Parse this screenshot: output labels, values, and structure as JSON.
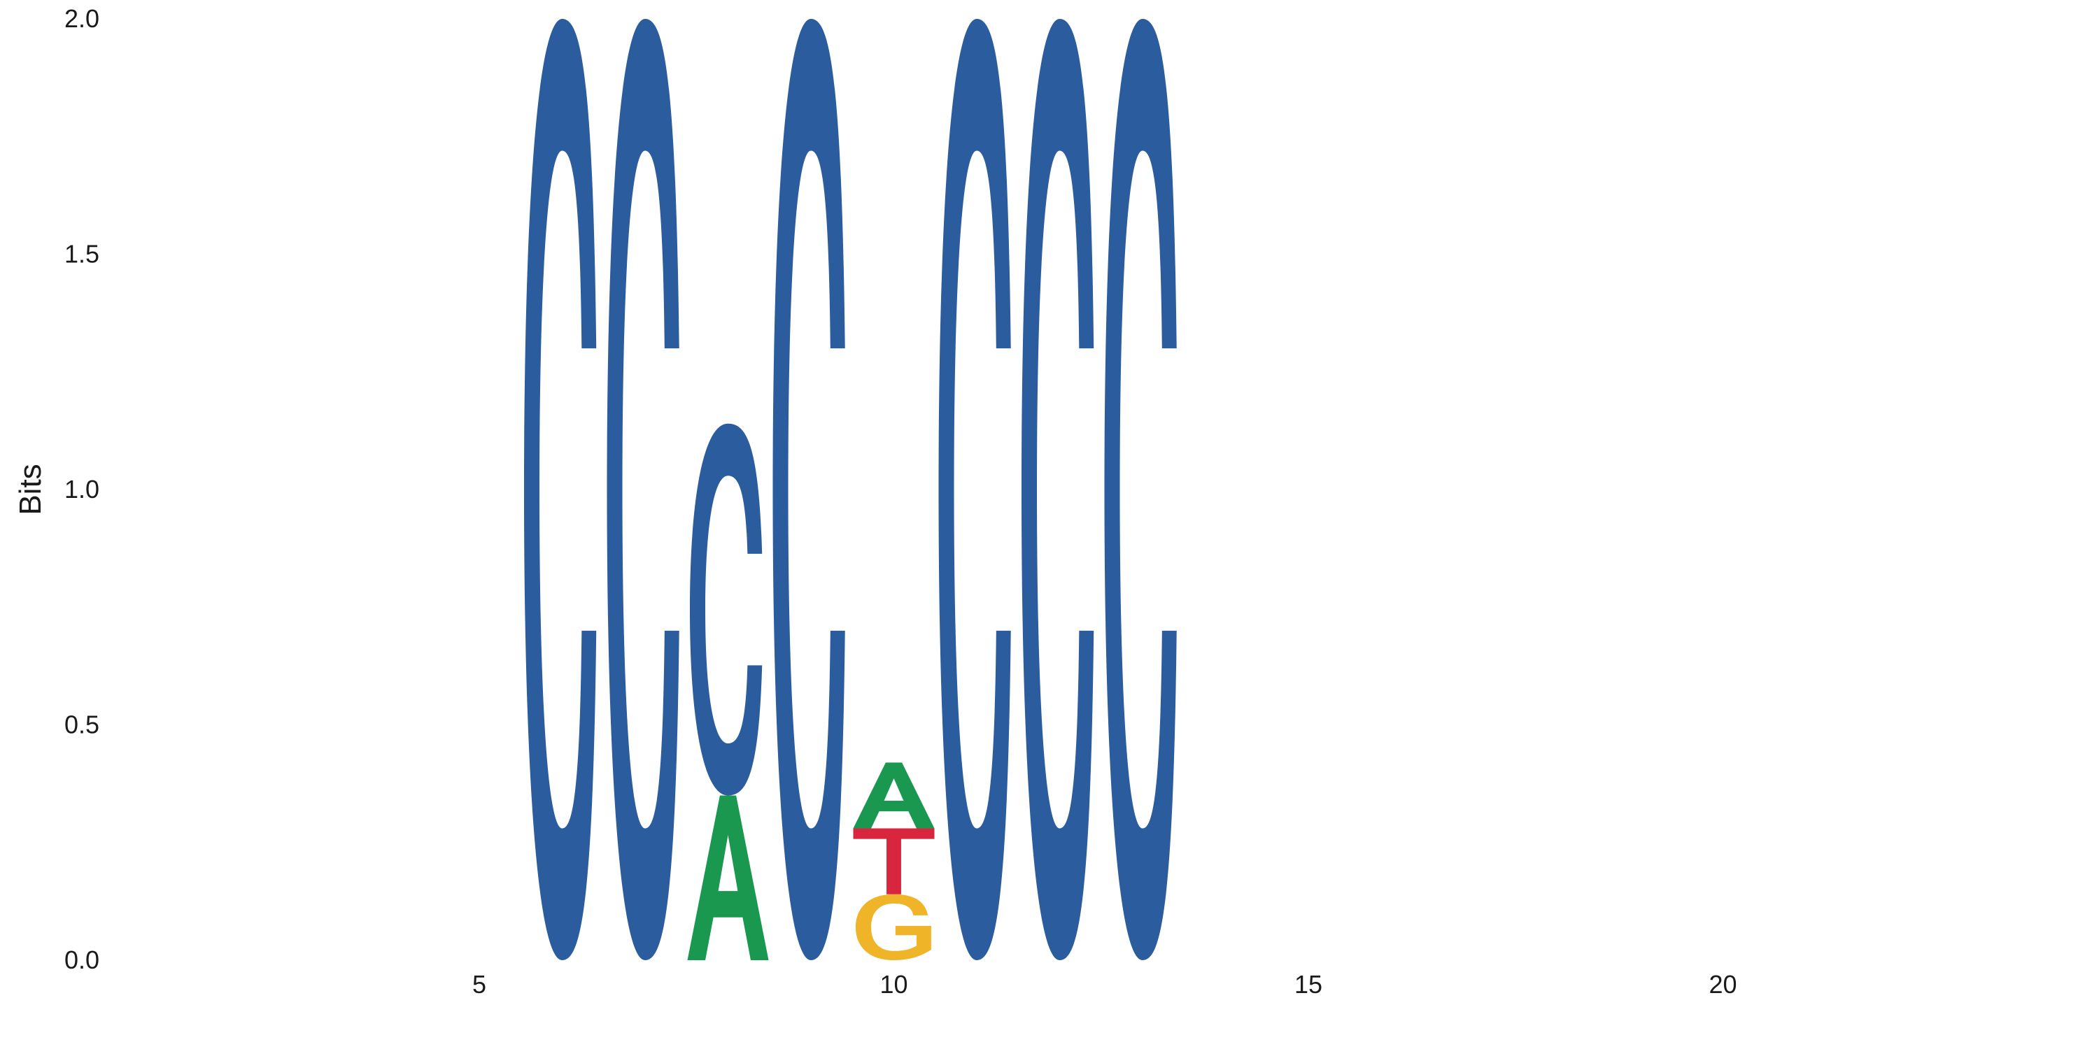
{
  "chart_data": {
    "type": "sequence-logo",
    "ylabel": "Bits",
    "ylim": [
      0,
      2.0
    ],
    "xlim": [
      0.5,
      25
    ],
    "yticks": [
      "0.0",
      "0.5",
      "1.0",
      "1.5",
      "2.0"
    ],
    "xticks": [
      "5",
      "10",
      "15",
      "20"
    ],
    "colors": {
      "A": "#1a9850",
      "C": "#2b5d9e",
      "G": "#f0b429",
      "T": "#d7263d"
    },
    "positions": [
      {
        "position": 6,
        "letters": [
          {
            "base": "C",
            "bits": 2.0
          }
        ]
      },
      {
        "position": 7,
        "letters": [
          {
            "base": "C",
            "bits": 2.0
          }
        ]
      },
      {
        "position": 8,
        "letters": [
          {
            "base": "A",
            "bits": 0.35
          },
          {
            "base": "C",
            "bits": 0.79
          }
        ]
      },
      {
        "position": 9,
        "letters": [
          {
            "base": "C",
            "bits": 2.0
          }
        ]
      },
      {
        "position": 10,
        "letters": [
          {
            "base": "G",
            "bits": 0.14
          },
          {
            "base": "T",
            "bits": 0.14
          },
          {
            "base": "A",
            "bits": 0.14
          }
        ]
      },
      {
        "position": 11,
        "letters": [
          {
            "base": "C",
            "bits": 2.0
          }
        ]
      },
      {
        "position": 12,
        "letters": [
          {
            "base": "C",
            "bits": 2.0
          }
        ]
      },
      {
        "position": 13,
        "letters": [
          {
            "base": "C",
            "bits": 2.0
          }
        ]
      }
    ]
  }
}
